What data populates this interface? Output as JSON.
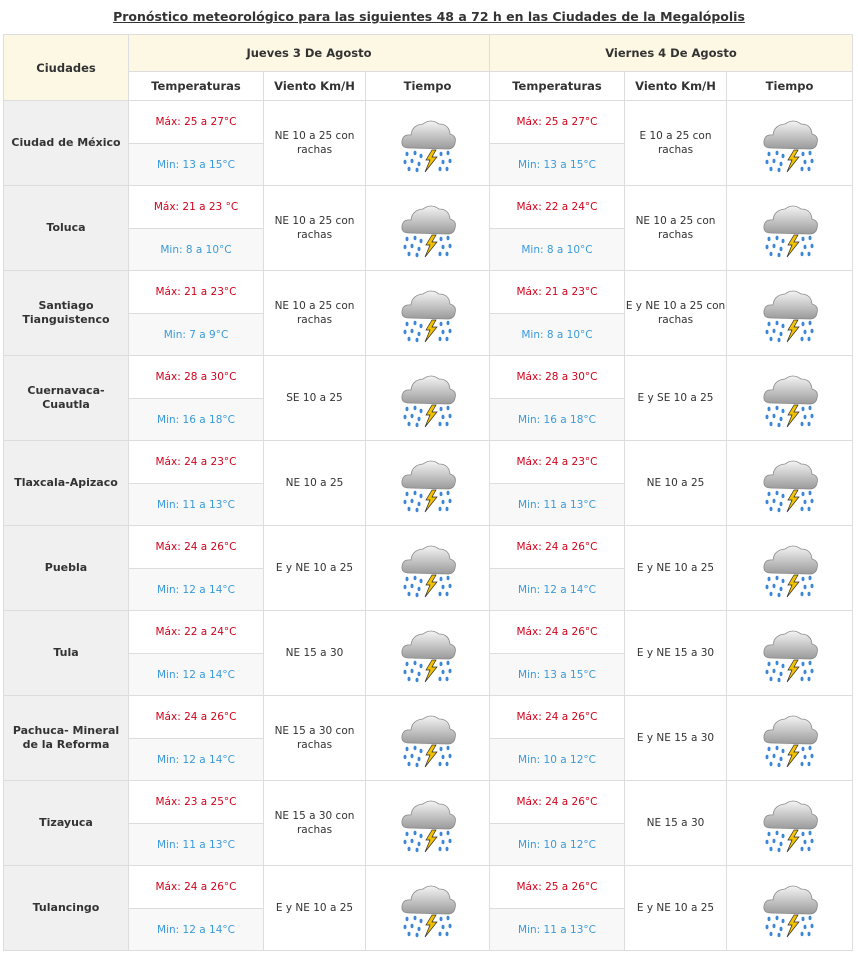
{
  "title": "Pronóstico meteorológico para las siguientes 48 a 72 h en las Ciudades de la Megalópolis",
  "header": {
    "cities": "Ciudades",
    "day1": "Jueves 3 De Agosto",
    "day2": "Viernes 4 De Agosto",
    "temps": "Temperaturas",
    "wind": "Viento Km/H",
    "weather": "Tiempo"
  },
  "weather_icon": "thunderstorm-rain-icon",
  "rows": [
    {
      "city": "Ciudad de México",
      "d1_max": "Máx: 25 a 27°C",
      "d1_min": "Min: 13 a 15°C",
      "d1_wind": "NE 10 a 25 con rachas",
      "d2_max": "Máx: 25 a 27°C",
      "d2_min": "Min: 13 a 15°C",
      "d2_wind": "E 10 a 25 con rachas"
    },
    {
      "city": "Toluca",
      "d1_max": "Máx: 21 a  23 °C",
      "d1_min": "Min: 8 a 10°C",
      "d1_wind": "NE 10 a 25 con rachas",
      "d2_max": "Máx: 22 a 24°C",
      "d2_min": "Min: 8 a 10°C",
      "d2_wind": "NE 10 a 25 con rachas"
    },
    {
      "city": "Santiago Tianguistenco",
      "d1_max": "Máx: 21 a 23°C",
      "d1_min": "Min: 7 a 9°C",
      "d1_wind": "NE 10 a 25 con rachas",
      "d2_max": "Máx: 21 a 23°C",
      "d2_min": "Min: 8 a 10°C",
      "d2_wind": "E y NE 10 a 25 con rachas"
    },
    {
      "city": "Cuernavaca-Cuautla",
      "d1_max": "Máx: 28 a 30°C",
      "d1_min": "Min: 16 a 18°C",
      "d1_wind": "SE 10 a 25",
      "d2_max": "Máx: 28 a 30°C",
      "d2_min": "Min: 16 a 18°C",
      "d2_wind": "E y SE 10 a 25"
    },
    {
      "city": "Tlaxcala-Apizaco",
      "d1_max": "Máx: 24 a 23°C",
      "d1_min": "Min: 11 a 13°C",
      "d1_wind": "NE 10 a 25",
      "d2_max": "Máx: 24 a 23°C",
      "d2_min": "Min: 11 a 13°C",
      "d2_wind": "NE 10 a 25"
    },
    {
      "city": "Puebla",
      "d1_max": "Máx: 24 a 26°C",
      "d1_min": "Min: 12 a 14°C",
      "d1_wind": "E y NE 10 a 25",
      "d2_max": "Máx: 24 a 26°C",
      "d2_min": "Min: 12 a 14°C",
      "d2_wind": "E y NE 10 a 25"
    },
    {
      "city": "Tula",
      "d1_max": "Máx: 22 a 24°C",
      "d1_min": "Min: 12 a 14°C",
      "d1_wind": "NE 15 a 30",
      "d2_max": "Máx: 24 a 26°C",
      "d2_min": "Min: 13 a 15°C",
      "d2_wind": "E y NE 15 a 30"
    },
    {
      "city": "Pachuca- Mineral de la Reforma",
      "d1_max": "Máx: 24 a 26°C",
      "d1_min": "Min: 12 a 14°C",
      "d1_wind": "NE 15 a 30 con rachas",
      "d2_max": "Máx: 24 a 26°C",
      "d2_min": "Min: 10 a 12°C",
      "d2_wind": "E  y NE 15 a 30"
    },
    {
      "city": "Tizayuca",
      "d1_max": "Máx: 23 a 25°C",
      "d1_min": "Min: 11 a 13°C",
      "d1_wind": "NE 15 a 30 con rachas",
      "d2_max": "Máx: 24 a 26°C",
      "d2_min": "Min: 10 a 12°C",
      "d2_wind": "NE 15 a 30"
    },
    {
      "city": "Tulancingo",
      "d1_max": "Máx: 24 a 26°C",
      "d1_min": "Min: 12 a 14°C",
      "d1_wind": "E y NE 10 a 25",
      "d2_max": "Máx: 25 a 26°C",
      "d2_min": "Min: 11 a 13°C",
      "d2_wind": "E y NE 10 a 25"
    }
  ]
}
